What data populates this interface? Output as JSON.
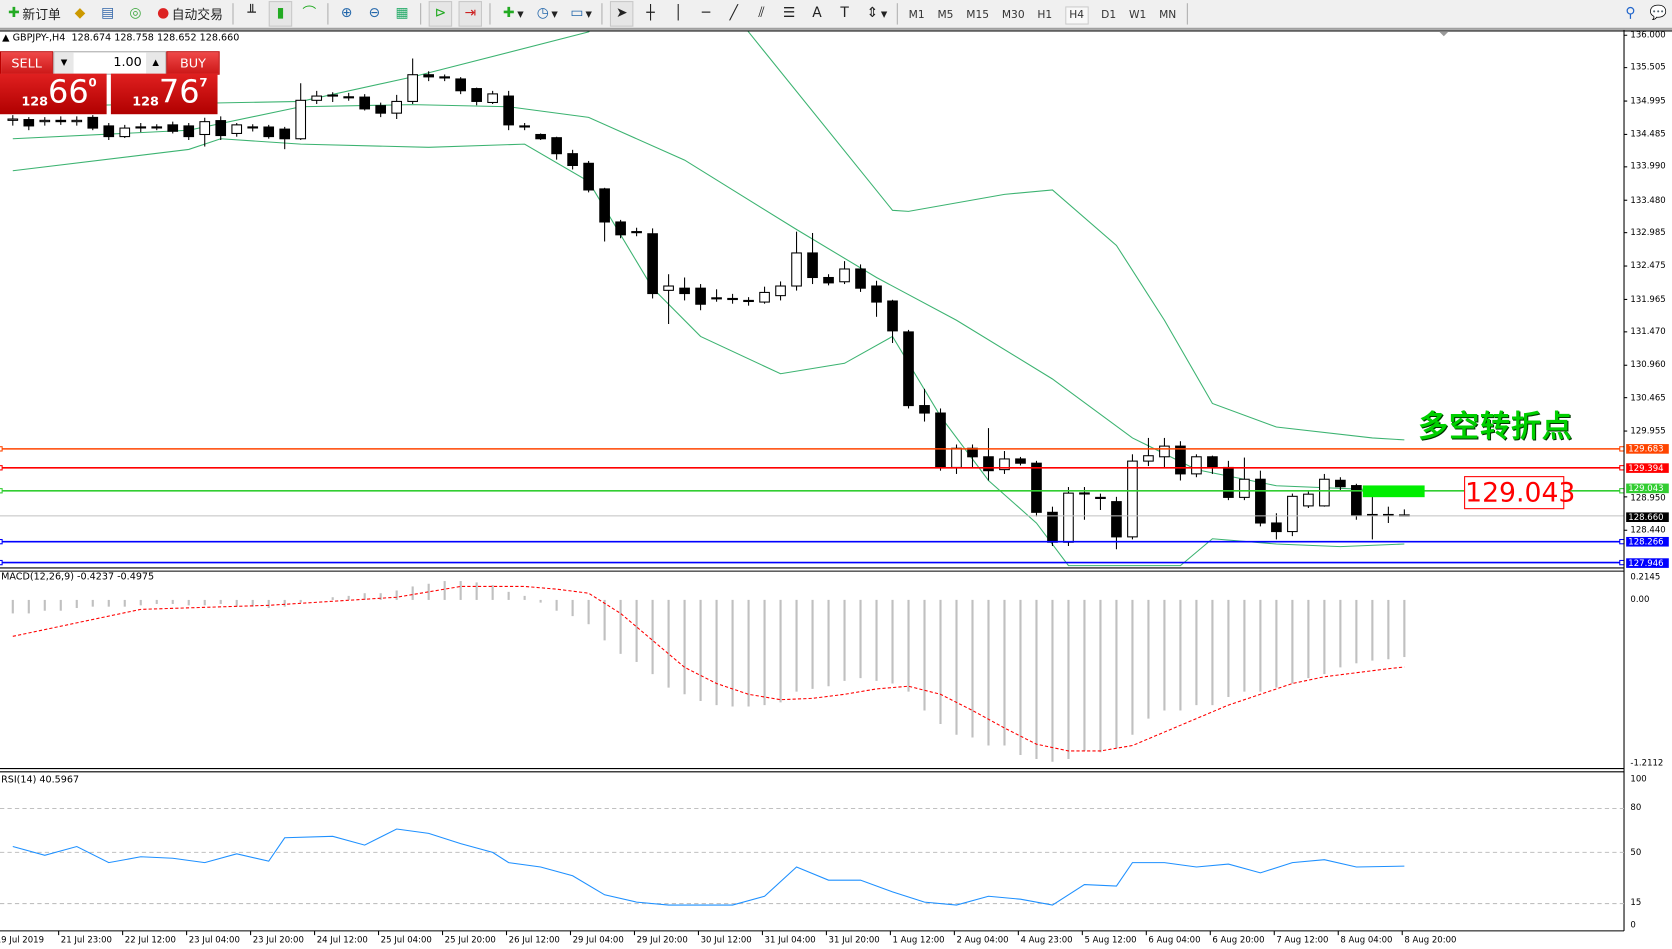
{
  "toolbar": {
    "new_order": "新订单",
    "auto_trading": "自动交易",
    "timeframes": [
      "M1",
      "M5",
      "M15",
      "M30",
      "H1",
      "H4",
      "D1",
      "W1",
      "MN"
    ],
    "active_timeframe": "H4",
    "icons": [
      "new-order-icon",
      "gold-icon",
      "history-icon",
      "signal-icon",
      "auto-trading-icon",
      "bar-chart-icon",
      "candlestick-icon",
      "line-chart-icon",
      "zoom-in-icon",
      "zoom-out-icon",
      "tile-windows-icon",
      "chart-shift-icon",
      "autoscroll-icon",
      "indicators-icon",
      "periods-icon",
      "templates-icon",
      "cursor-icon",
      "crosshair-icon",
      "vertical-line-icon",
      "horizontal-line-icon",
      "trendline-icon",
      "equidistant-channel-icon",
      "fibonacci-icon",
      "text-icon",
      "text-label-icon",
      "arrows-icon",
      "search-icon",
      "chat-icon"
    ]
  },
  "header": {
    "symbol": "GBPJPY-,H4",
    "ohlc": "128.674 128.758 128.652 128.660"
  },
  "trade_panel": {
    "sell": "SELL",
    "buy": "BUY",
    "lot": "1.00",
    "bid": {
      "prefix": "128",
      "big": "66",
      "sup": "0"
    },
    "ask": {
      "prefix": "128",
      "big": "76",
      "sup": "7"
    }
  },
  "annotation": {
    "text": "多空转折点",
    "price_label": "129.043"
  },
  "price_axis": [
    "136.000",
    "135.505",
    "134.995",
    "134.485",
    "133.990",
    "133.480",
    "132.985",
    "132.475",
    "131.965",
    "131.470",
    "130.960",
    "130.465",
    "129.955",
    "128.950",
    "128.440"
  ],
  "levels": [
    {
      "price": 129.683,
      "label": "129.683",
      "color": "#ff4500"
    },
    {
      "price": 129.394,
      "label": "129.394",
      "color": "#ff0000"
    },
    {
      "price": 129.043,
      "label": "129.043",
      "color": "#32cd32"
    },
    {
      "price": 128.66,
      "label": "128.660",
      "color": "#000000"
    },
    {
      "price": 128.266,
      "label": "128.266",
      "color": "#0000ff"
    },
    {
      "price": 127.946,
      "label": "127.946",
      "color": "#0000ff"
    }
  ],
  "macd": {
    "title": "MACD(12,26,9) -0.4237 -0.4975",
    "axis": [
      "0.2145",
      "0.00",
      "-1.2112"
    ]
  },
  "rsi": {
    "title": "RSI(14) 40.5967",
    "axis": [
      "100",
      "80",
      "50",
      "15",
      "0"
    ]
  },
  "time_axis": [
    "19 Jul 2019",
    "21 Jul 23:00",
    "22 Jul 12:00",
    "23 Jul 04:00",
    "23 Jul 20:00",
    "24 Jul 12:00",
    "25 Jul 04:00",
    "25 Jul 20:00",
    "26 Jul 12:00",
    "29 Jul 04:00",
    "29 Jul 20:00",
    "30 Jul 12:00",
    "31 Jul 04:00",
    "31 Jul 20:00",
    "1 Aug 12:00",
    "2 Aug 04:00",
    "4 Aug 23:00",
    "5 Aug 12:00",
    "6 Aug 04:00",
    "6 Aug 20:00",
    "7 Aug 12:00",
    "8 Aug 04:00",
    "8 Aug 20:00"
  ],
  "chart_data": {
    "type": "candlestick",
    "ylim": [
      127.946,
      136.0
    ],
    "candles_ohlc": [
      [
        134.7,
        134.78,
        134.62,
        134.72
      ],
      [
        134.712,
        134.75,
        134.55,
        134.615
      ],
      [
        134.68,
        134.75,
        134.62,
        134.7
      ],
      [
        134.7,
        134.76,
        134.63,
        134.68
      ],
      [
        134.68,
        134.76,
        134.62,
        134.7
      ],
      [
        134.745,
        134.78,
        134.55,
        134.582
      ],
      [
        134.615,
        134.66,
        134.4,
        134.452
      ],
      [
        134.452,
        134.63,
        134.43,
        134.582
      ],
      [
        134.598,
        134.66,
        134.52,
        134.6
      ],
      [
        134.6,
        134.64,
        134.55,
        134.598
      ],
      [
        134.631,
        134.68,
        134.5,
        134.533
      ],
      [
        134.615,
        134.66,
        134.4,
        134.452
      ],
      [
        134.484,
        134.74,
        134.3,
        134.68
      ],
      [
        134.696,
        134.76,
        134.4,
        134.468
      ],
      [
        134.5,
        134.66,
        134.45,
        134.631
      ],
      [
        134.6,
        134.64,
        134.53,
        134.598
      ],
      [
        134.598,
        134.63,
        134.42,
        134.452
      ],
      [
        134.566,
        134.6,
        134.26,
        134.419
      ],
      [
        134.419,
        135.267,
        134.4,
        135.006
      ],
      [
        135.006,
        135.15,
        134.95,
        135.071
      ],
      [
        135.08,
        135.13,
        134.98,
        135.087
      ],
      [
        135.055,
        135.12,
        135.0,
        135.06
      ],
      [
        135.055,
        135.1,
        134.85,
        134.875
      ],
      [
        134.924,
        134.97,
        134.75,
        134.81
      ],
      [
        134.81,
        135.09,
        134.72,
        134.989
      ],
      [
        134.989,
        135.645,
        134.95,
        135.397
      ],
      [
        135.397,
        135.45,
        135.3,
        135.364
      ],
      [
        135.364,
        135.4,
        135.3,
        135.36
      ],
      [
        135.332,
        135.36,
        135.1,
        135.152
      ],
      [
        135.185,
        135.2,
        134.93,
        134.989
      ],
      [
        134.973,
        135.15,
        134.95,
        135.104
      ],
      [
        135.071,
        135.15,
        134.55,
        134.631
      ],
      [
        134.615,
        134.66,
        134.55,
        134.61
      ],
      [
        134.484,
        134.5,
        134.4,
        134.419
      ],
      [
        134.435,
        134.45,
        134.1,
        134.191
      ],
      [
        134.191,
        134.25,
        133.95,
        134.011
      ],
      [
        134.044,
        134.08,
        133.6,
        133.637
      ],
      [
        133.653,
        133.67,
        132.85,
        133.148
      ],
      [
        133.148,
        133.18,
        132.9,
        132.952
      ],
      [
        133.0,
        133.06,
        132.93,
        133.001
      ],
      [
        132.968,
        133.05,
        131.98,
        132.055
      ],
      [
        132.104,
        132.35,
        131.59,
        132.17
      ],
      [
        132.137,
        132.3,
        131.95,
        132.055
      ],
      [
        132.137,
        132.2,
        131.8,
        131.892
      ],
      [
        131.99,
        132.12,
        131.93,
        131.99
      ],
      [
        131.974,
        132.05,
        131.9,
        131.98
      ],
      [
        131.941,
        132.0,
        131.87,
        131.95
      ],
      [
        131.925,
        132.16,
        131.9,
        132.072
      ],
      [
        132.023,
        132.24,
        131.95,
        132.17
      ],
      [
        132.17,
        133.0,
        132.1,
        132.675
      ],
      [
        132.675,
        132.98,
        132.2,
        132.3
      ],
      [
        132.3,
        132.35,
        132.18,
        132.218
      ],
      [
        132.235,
        132.55,
        132.2,
        132.43
      ],
      [
        132.43,
        132.5,
        132.08,
        132.137
      ],
      [
        132.17,
        132.25,
        131.7,
        131.925
      ],
      [
        131.941,
        131.96,
        131.3,
        131.485
      ],
      [
        131.469,
        131.5,
        130.3,
        130.344
      ],
      [
        130.344,
        130.6,
        130.1,
        130.23
      ],
      [
        130.23,
        130.3,
        129.35,
        129.399
      ],
      [
        129.399,
        129.75,
        129.3,
        129.692
      ],
      [
        129.692,
        129.75,
        129.4,
        129.562
      ],
      [
        129.562,
        130.0,
        129.2,
        129.35
      ],
      [
        129.366,
        129.65,
        129.3,
        129.529
      ],
      [
        129.529,
        129.56,
        129.43,
        129.464
      ],
      [
        129.464,
        129.5,
        128.65,
        128.714
      ],
      [
        128.714,
        128.8,
        128.2,
        128.257
      ],
      [
        128.257,
        129.1,
        128.2,
        129.007
      ],
      [
        129.01,
        129.1,
        128.6,
        129.007
      ],
      [
        128.94,
        129.0,
        128.75,
        128.942
      ],
      [
        128.877,
        128.95,
        128.15,
        128.339
      ],
      [
        128.339,
        129.6,
        128.3,
        129.496
      ],
      [
        129.496,
        129.85,
        129.42,
        129.578
      ],
      [
        129.562,
        129.85,
        129.4,
        129.725
      ],
      [
        129.725,
        129.8,
        129.2,
        129.301
      ],
      [
        129.301,
        129.6,
        129.25,
        129.562
      ],
      [
        129.562,
        129.58,
        129.3,
        129.399
      ],
      [
        129.399,
        129.5,
        128.9,
        128.942
      ],
      [
        128.942,
        129.55,
        128.9,
        129.219
      ],
      [
        129.219,
        129.35,
        128.5,
        128.551
      ],
      [
        128.551,
        128.7,
        128.3,
        128.42
      ],
      [
        128.42,
        129.0,
        128.35,
        128.958
      ],
      [
        128.812,
        129.05,
        128.78,
        128.991
      ],
      [
        128.812,
        129.3,
        128.8,
        129.219
      ],
      [
        129.203,
        129.25,
        129.05,
        129.105
      ],
      [
        129.122,
        129.15,
        128.6,
        128.665
      ],
      [
        128.68,
        128.95,
        128.3,
        128.681
      ],
      [
        128.681,
        128.8,
        128.55,
        128.68
      ],
      [
        128.674,
        128.758,
        128.652,
        128.66
      ]
    ],
    "bollinger": {
      "upper": [
        [
          0,
          134.908
        ],
        [
          18,
          134.989
        ],
        [
          25,
          135.364
        ],
        [
          36,
          136.05
        ],
        [
          40,
          137.0
        ],
        [
          43,
          137.0
        ],
        [
          46,
          136.05
        ],
        [
          55,
          133.326
        ],
        [
          56,
          133.31
        ],
        [
          62,
          133.57
        ],
        [
          65,
          133.637
        ],
        [
          69,
          132.79
        ],
        [
          72,
          131.647
        ],
        [
          75,
          130.376
        ],
        [
          79,
          130.017
        ],
        [
          85,
          129.85
        ],
        [
          87,
          129.82
        ]
      ],
      "middle": [
        [
          0,
          134.419
        ],
        [
          11,
          134.549
        ],
        [
          18,
          134.908
        ],
        [
          25,
          134.94
        ],
        [
          31,
          134.908
        ],
        [
          36,
          134.745
        ],
        [
          42,
          134.093
        ],
        [
          49,
          133.033
        ],
        [
          54,
          132.3
        ],
        [
          59,
          131.647
        ],
        [
          65,
          130.75
        ],
        [
          70,
          129.85
        ],
        [
          74,
          129.366
        ],
        [
          79,
          129.12
        ],
        [
          87,
          129.04
        ]
      ],
      "lower": [
        [
          0,
          133.93
        ],
        [
          11,
          134.256
        ],
        [
          13,
          134.419
        ],
        [
          18,
          134.337
        ],
        [
          26,
          134.288
        ],
        [
          32,
          134.337
        ],
        [
          36,
          133.767
        ],
        [
          40,
          132.137
        ],
        [
          43,
          131.4
        ],
        [
          48,
          130.83
        ],
        [
          52,
          130.99
        ],
        [
          55,
          131.4
        ],
        [
          58,
          130.18
        ],
        [
          61,
          129.2
        ],
        [
          64,
          128.55
        ],
        [
          66,
          127.9
        ],
        [
          73,
          127.9
        ],
        [
          75,
          128.31
        ],
        [
          79,
          128.23
        ],
        [
          83,
          128.19
        ],
        [
          87,
          128.23
        ]
      ]
    },
    "macd_histogram": [
      -0.1,
      -0.1,
      -0.08,
      -0.08,
      -0.06,
      -0.05,
      -0.05,
      -0.05,
      -0.04,
      -0.03,
      -0.03,
      -0.04,
      -0.04,
      -0.03,
      -0.05,
      -0.05,
      -0.06,
      -0.05,
      -0.02,
      0.0,
      0.02,
      0.03,
      0.05,
      0.05,
      0.07,
      0.1,
      0.12,
      0.14,
      0.14,
      0.13,
      0.11,
      0.06,
      0.03,
      -0.02,
      -0.08,
      -0.12,
      -0.18,
      -0.3,
      -0.4,
      -0.46,
      -0.55,
      -0.65,
      -0.7,
      -0.75,
      -0.78,
      -0.79,
      -0.79,
      -0.78,
      -0.76,
      -0.68,
      -0.66,
      -0.64,
      -0.6,
      -0.58,
      -0.6,
      -0.62,
      -0.68,
      -0.82,
      -0.92,
      -1.0,
      -1.02,
      -1.08,
      -1.08,
      -1.15,
      -1.18,
      -1.2,
      -1.18,
      -1.12,
      -1.13,
      -1.1,
      -1.0,
      -0.88,
      -0.82,
      -0.82,
      -0.78,
      -0.78,
      -0.72,
      -0.68,
      -0.68,
      -0.65,
      -0.62,
      -0.58,
      -0.55,
      -0.5,
      -0.47,
      -0.45,
      -0.44,
      -0.4237
    ],
    "macd_signal": [
      [
        0,
        -0.27
      ],
      [
        8,
        -0.07
      ],
      [
        16,
        -0.04
      ],
      [
        24,
        0.02
      ],
      [
        28,
        0.1
      ],
      [
        32,
        0.1
      ],
      [
        34,
        0.08
      ],
      [
        36,
        0.05
      ],
      [
        38,
        -0.1
      ],
      [
        40,
        -0.3
      ],
      [
        42,
        -0.5
      ],
      [
        44,
        -0.62
      ],
      [
        46,
        -0.7
      ],
      [
        48,
        -0.74
      ],
      [
        50,
        -0.73
      ],
      [
        52,
        -0.7
      ],
      [
        54,
        -0.66
      ],
      [
        56,
        -0.64
      ],
      [
        58,
        -0.7
      ],
      [
        60,
        -0.82
      ],
      [
        62,
        -0.95
      ],
      [
        64,
        -1.07
      ],
      [
        66,
        -1.12
      ],
      [
        68,
        -1.12
      ],
      [
        70,
        -1.08
      ],
      [
        72,
        -0.98
      ],
      [
        74,
        -0.88
      ],
      [
        76,
        -0.78
      ],
      [
        78,
        -0.7
      ],
      [
        80,
        -0.62
      ],
      [
        82,
        -0.57
      ],
      [
        84,
        -0.54
      ],
      [
        86,
        -0.51
      ],
      [
        87,
        -0.4975
      ]
    ],
    "macd_ylim": [
      -1.2112,
      0.2145
    ],
    "rsi": [
      [
        0,
        54
      ],
      [
        2,
        48
      ],
      [
        4,
        54
      ],
      [
        6,
        43
      ],
      [
        8,
        47
      ],
      [
        10,
        46
      ],
      [
        12,
        43
      ],
      [
        14,
        49
      ],
      [
        16,
        44
      ],
      [
        17,
        60
      ],
      [
        20,
        61
      ],
      [
        22,
        55
      ],
      [
        24,
        66
      ],
      [
        26,
        63
      ],
      [
        28,
        56
      ],
      [
        30,
        50
      ],
      [
        31,
        43
      ],
      [
        33,
        40
      ],
      [
        35,
        34
      ],
      [
        37,
        21
      ],
      [
        39,
        16
      ],
      [
        41,
        14
      ],
      [
        43,
        14
      ],
      [
        45,
        14
      ],
      [
        47,
        20
      ],
      [
        49,
        40
      ],
      [
        51,
        31
      ],
      [
        53,
        31
      ],
      [
        55,
        23
      ],
      [
        57,
        16
      ],
      [
        59,
        14
      ],
      [
        61,
        20
      ],
      [
        63,
        18
      ],
      [
        65,
        14
      ],
      [
        67,
        28
      ],
      [
        69,
        27
      ],
      [
        70,
        43
      ],
      [
        72,
        43
      ],
      [
        74,
        40
      ],
      [
        76,
        42
      ],
      [
        78,
        36
      ],
      [
        80,
        43
      ],
      [
        82,
        45
      ],
      [
        84,
        40
      ],
      [
        87,
        40.5967
      ]
    ],
    "rsi_levels": [
      80,
      50,
      15
    ],
    "colors": {
      "bull": "#ffffff",
      "bear": "#000000",
      "bands": "#3cb371",
      "macd_hist": "#c0c0c0",
      "macd_signal": "#ff0000",
      "rsi": "#1e90ff"
    }
  }
}
